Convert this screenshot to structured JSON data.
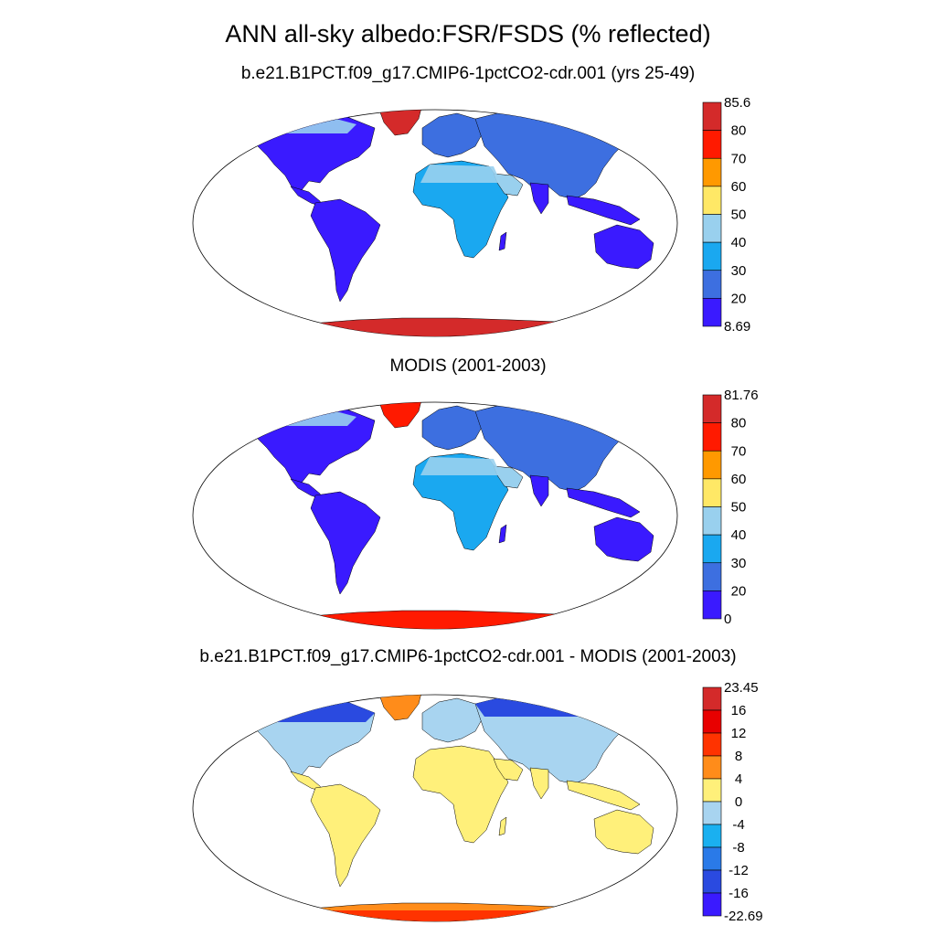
{
  "title": "ANN all-sky albedo:FSR/FSDS (% reflected)",
  "panels": [
    {
      "title": "b.e21.B1PCT.f09_g17.CMIP6-1pctCO2-cdr.001 (yrs 25-49)",
      "colorbar": {
        "labels": [
          "85.6",
          "80",
          "70",
          "60",
          "50",
          "40",
          "30",
          "20",
          "8.69"
        ],
        "colors": [
          "#d42a2a",
          "#ff1a00",
          "#ff9900",
          "#ffe866",
          "#99d0ee",
          "#1aa8f0",
          "#3d6fe0",
          "#3a1aff"
        ]
      }
    },
    {
      "title": "MODIS (2001-2003)",
      "colorbar": {
        "labels": [
          "81.76",
          "80",
          "70",
          "60",
          "50",
          "40",
          "30",
          "20",
          "0"
        ],
        "colors": [
          "#d42a2a",
          "#ff1a00",
          "#ff9900",
          "#ffe866",
          "#99d0ee",
          "#1aa8f0",
          "#3d6fe0",
          "#3a1aff"
        ]
      }
    },
    {
      "title": "b.e21.B1PCT.f09_g17.CMIP6-1pctCO2-cdr.001 - MODIS (2001-2003)",
      "colorbar": {
        "labels": [
          "23.45",
          "16",
          "12",
          "8",
          "4",
          "0",
          "-4",
          "-8",
          "-12",
          "-16",
          "-22.69"
        ],
        "colors": [
          "#d42a2a",
          "#e80000",
          "#ff3300",
          "#ff8c1a",
          "#fff07a",
          "#a8d4f0",
          "#1ab0f0",
          "#2a7ae8",
          "#2a4ae0",
          "#3a1aff"
        ]
      }
    }
  ]
}
